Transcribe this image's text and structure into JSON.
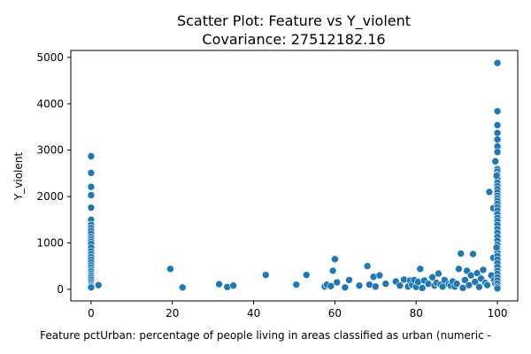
{
  "chart_data": {
    "type": "scatter",
    "title": "Scatter Plot: Feature vs Y_violent",
    "subtitle": "Covariance: 27512182.16",
    "xlabel": "Feature  pctUrban: percentage of people living in areas classified as urban (numeric -",
    "ylabel": "Y_violent",
    "xlim": [
      -5,
      105
    ],
    "ylim": [
      -250,
      5150
    ],
    "xticks": [
      0,
      20,
      40,
      60,
      80,
      100
    ],
    "yticks": [
      0,
      1000,
      2000,
      3000,
      4000,
      5000
    ],
    "grid": false,
    "marker_color": "#1f77b4",
    "points": [
      [
        0,
        2870
      ],
      [
        0,
        2510
      ],
      [
        0,
        2210
      ],
      [
        0,
        2030
      ],
      [
        0,
        1760
      ],
      [
        0,
        1500
      ],
      [
        0,
        1390
      ],
      [
        0,
        1320
      ],
      [
        0,
        1260
      ],
      [
        0,
        1200
      ],
      [
        0,
        1130
      ],
      [
        0,
        1080
      ],
      [
        0,
        1030
      ],
      [
        0,
        980
      ],
      [
        0,
        900
      ],
      [
        0,
        820
      ],
      [
        0,
        760
      ],
      [
        0,
        700
      ],
      [
        0,
        640
      ],
      [
        0,
        580
      ],
      [
        0,
        520
      ],
      [
        0,
        470
      ],
      [
        0,
        420
      ],
      [
        0,
        380
      ],
      [
        0,
        330
      ],
      [
        0,
        290
      ],
      [
        0,
        250
      ],
      [
        0,
        210
      ],
      [
        0,
        170
      ],
      [
        0,
        130
      ],
      [
        0,
        90
      ],
      [
        0,
        60
      ],
      [
        0,
        40
      ],
      [
        1.8,
        90
      ],
      [
        19.5,
        440
      ],
      [
        22.5,
        40
      ],
      [
        31.5,
        110
      ],
      [
        33.5,
        50
      ],
      [
        35,
        80
      ],
      [
        43,
        310
      ],
      [
        50.5,
        100
      ],
      [
        53,
        310
      ],
      [
        57.5,
        60
      ],
      [
        58,
        100
      ],
      [
        59,
        70
      ],
      [
        59.5,
        400
      ],
      [
        60,
        650
      ],
      [
        60.5,
        150
      ],
      [
        62.5,
        40
      ],
      [
        63.5,
        200
      ],
      [
        66,
        80
      ],
      [
        68,
        500
      ],
      [
        68.5,
        100
      ],
      [
        69.5,
        270
      ],
      [
        70,
        60
      ],
      [
        71,
        300
      ],
      [
        72.5,
        120
      ],
      [
        75,
        170
      ],
      [
        76,
        80
      ],
      [
        77,
        210
      ],
      [
        78,
        60
      ],
      [
        78.5,
        190
      ],
      [
        79,
        100
      ],
      [
        79.5,
        200
      ],
      [
        80,
        50
      ],
      [
        80.5,
        160
      ],
      [
        81,
        440
      ],
      [
        81.5,
        30
      ],
      [
        82,
        190
      ],
      [
        83,
        120
      ],
      [
        84,
        260
      ],
      [
        84.5,
        80
      ],
      [
        85,
        140
      ],
      [
        85.5,
        340
      ],
      [
        86,
        100
      ],
      [
        86.5,
        60
      ],
      [
        87,
        200
      ],
      [
        88,
        110
      ],
      [
        88.5,
        80
      ],
      [
        89,
        170
      ],
      [
        89.5,
        60
      ],
      [
        90,
        120
      ],
      [
        90.5,
        440
      ],
      [
        91,
        770
      ],
      [
        91.5,
        30
      ],
      [
        92,
        200
      ],
      [
        92.5,
        400
      ],
      [
        93,
        90
      ],
      [
        93.5,
        300
      ],
      [
        94,
        760
      ],
      [
        94.5,
        160
      ],
      [
        95,
        350
      ],
      [
        95.5,
        50
      ],
      [
        96,
        230
      ],
      [
        96.5,
        420
      ],
      [
        97,
        140
      ],
      [
        97.5,
        90
      ],
      [
        98,
        2100
      ],
      [
        98.5,
        300
      ],
      [
        99,
        1750
      ],
      [
        99,
        680
      ],
      [
        99.2,
        200
      ],
      [
        99.5,
        2760
      ],
      [
        99.5,
        120
      ],
      [
        100,
        4880
      ],
      [
        100,
        3840
      ],
      [
        100,
        3540
      ],
      [
        100,
        3370
      ],
      [
        100,
        3230
      ],
      [
        100,
        3080
      ],
      [
        100,
        2960
      ],
      [
        100,
        2590
      ],
      [
        100,
        2540
      ],
      [
        100,
        2470
      ],
      [
        100,
        2390
      ],
      [
        100,
        2300
      ],
      [
        100,
        2230
      ],
      [
        100,
        2160
      ],
      [
        100,
        2090
      ],
      [
        100,
        2020
      ],
      [
        100,
        1960
      ],
      [
        100,
        1900
      ],
      [
        100,
        1840
      ],
      [
        100,
        1770
      ],
      [
        100,
        1700
      ],
      [
        100,
        1620
      ],
      [
        100,
        1540
      ],
      [
        100,
        1470
      ],
      [
        100,
        1390
      ],
      [
        100,
        1300
      ],
      [
        100,
        1220
      ],
      [
        100,
        1130
      ],
      [
        100,
        1050
      ],
      [
        100,
        960
      ],
      [
        100,
        880
      ],
      [
        100,
        800
      ],
      [
        100,
        720
      ],
      [
        100,
        640
      ],
      [
        100,
        560
      ],
      [
        100,
        480
      ],
      [
        100,
        400
      ],
      [
        100,
        330
      ],
      [
        100,
        260
      ],
      [
        100,
        190
      ],
      [
        100,
        120
      ],
      [
        100,
        60
      ],
      [
        100,
        20
      ],
      [
        99.8,
        2450
      ],
      [
        99.8,
        900
      ]
    ]
  }
}
